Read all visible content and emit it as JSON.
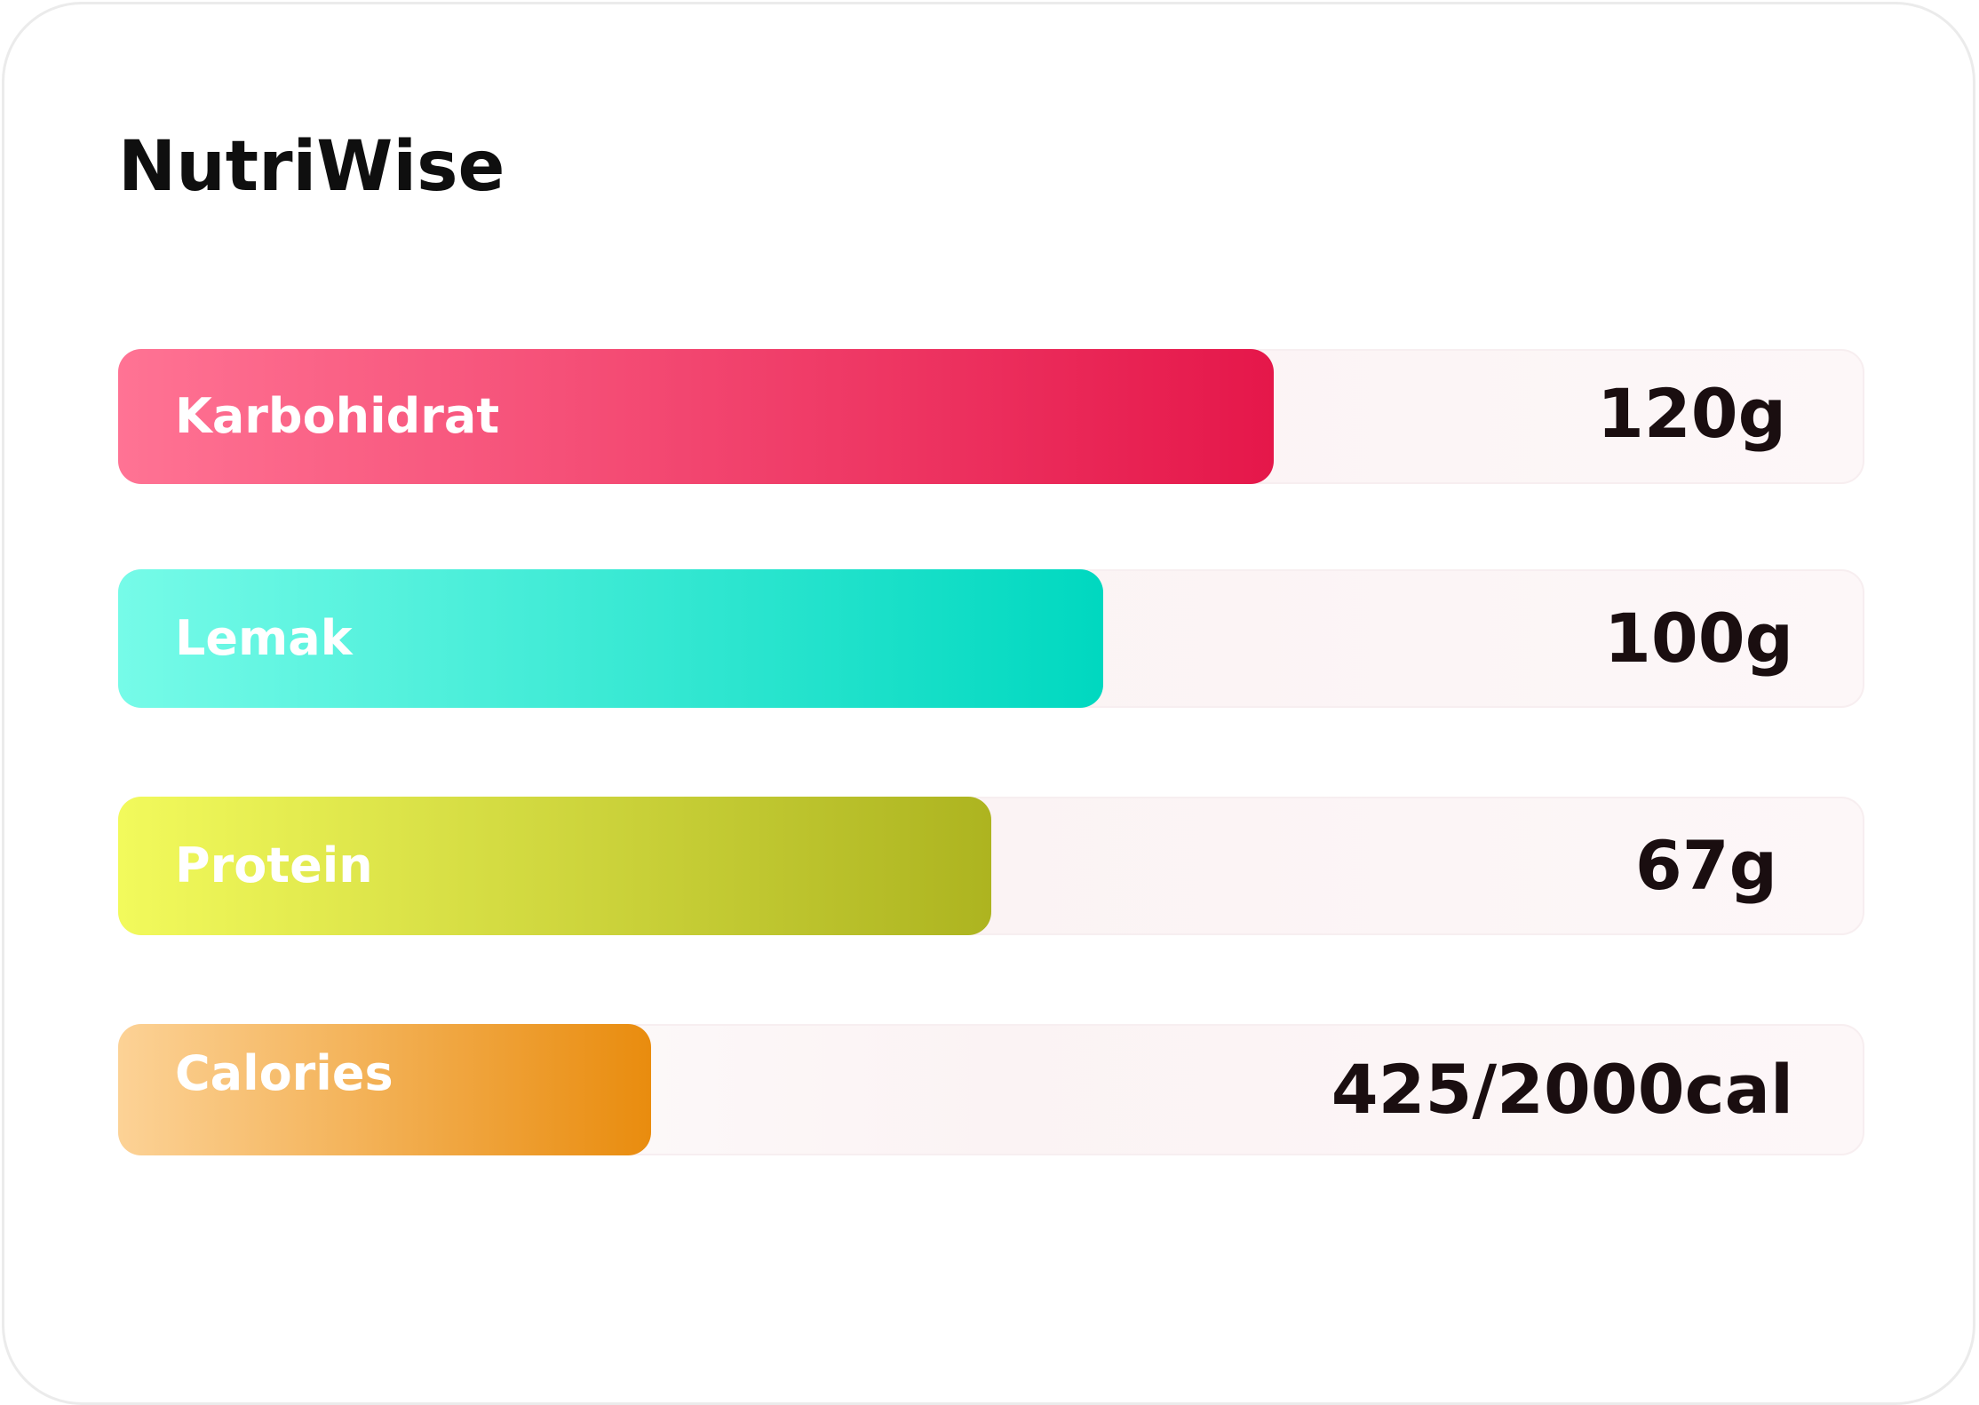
{
  "app": {
    "title": "NutriWise"
  },
  "nutrients": [
    {
      "label": "Karbohidrat",
      "value": "120g",
      "fill_fraction": 0.662,
      "gradient": [
        "#ff7394",
        "#e5174a"
      ]
    },
    {
      "label": "Lemak",
      "value": "100g",
      "fill_fraction": 0.564,
      "gradient": [
        "#76fbe8",
        "#00d8c0"
      ]
    },
    {
      "label": "Protein",
      "value": "67g",
      "fill_fraction": 0.5,
      "gradient": [
        "#f2fa5c",
        "#adb420"
      ]
    },
    {
      "label": "Calories",
      "value": "425/2000cal",
      "fill_fraction": 0.305,
      "gradient": [
        "#fcd296",
        "#e98c0e"
      ]
    }
  ]
}
